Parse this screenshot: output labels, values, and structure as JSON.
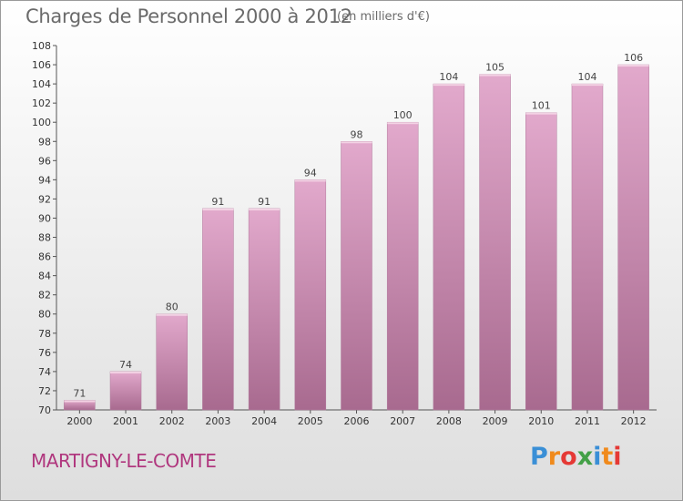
{
  "chart_data": {
    "type": "bar",
    "title": "Charges de Personnel 2000 à 2012",
    "subtitle": "(en milliers d'€)",
    "categories": [
      "2000",
      "2001",
      "2002",
      "2003",
      "2004",
      "2005",
      "2006",
      "2007",
      "2008",
      "2009",
      "2010",
      "2011",
      "2012"
    ],
    "values": [
      71,
      74,
      80,
      91,
      91,
      94,
      98,
      100,
      104,
      105,
      101,
      104,
      106
    ],
    "ylim": [
      70,
      108
    ],
    "yticks": [
      70,
      72,
      74,
      76,
      78,
      80,
      82,
      84,
      86,
      88,
      90,
      92,
      94,
      96,
      98,
      100,
      102,
      104,
      106,
      108
    ],
    "grid": false,
    "bar_color": "#c9709f"
  },
  "commune": "MARTIGNY-LE-COMTE",
  "logo": {
    "letters": [
      "P",
      "r",
      "o",
      "x",
      "i",
      "t",
      "i"
    ],
    "colors": [
      "#3a8fd6",
      "#f08a1c",
      "#e53935",
      "#43a047",
      "#3a8fd6",
      "#f08a1c",
      "#e53935"
    ]
  }
}
